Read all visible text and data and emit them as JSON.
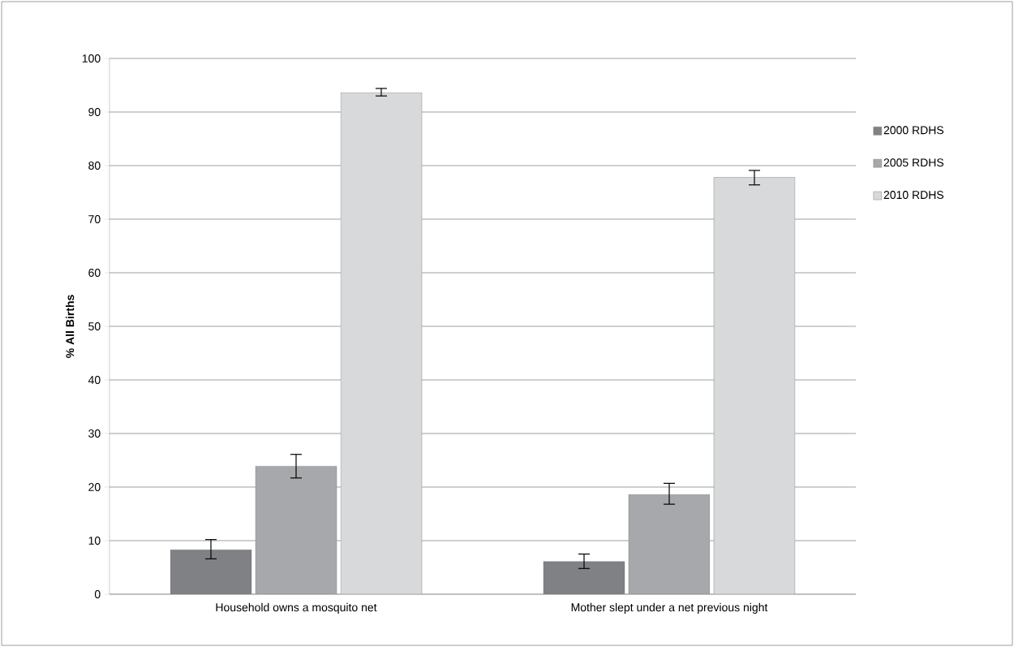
{
  "chart_data": {
    "type": "bar",
    "ylabel": "% All Births",
    "categories": [
      "Household owns a mosquito net",
      "Mother slept under a net previous night"
    ],
    "series": [
      {
        "name": "2000 RDHS",
        "color": "#808184",
        "values": [
          8.3,
          6.1
        ],
        "errors": [
          [
            6.6,
            10.2
          ],
          [
            4.8,
            7.5
          ]
        ]
      },
      {
        "name": "2005 RDHS",
        "color": "#a7a8ab",
        "values": [
          23.9,
          18.6
        ],
        "errors": [
          [
            21.7,
            26.1
          ],
          [
            16.8,
            20.7
          ]
        ]
      },
      {
        "name": "2010 RDHS",
        "color": "#d8d9db",
        "values": [
          93.6,
          77.8
        ],
        "errors": [
          [
            93.0,
            94.4
          ],
          [
            76.4,
            79.1
          ]
        ]
      }
    ],
    "ylim": [
      0,
      100
    ],
    "yticks": [
      0,
      10,
      20,
      30,
      40,
      50,
      60,
      70,
      80,
      90,
      100
    ],
    "grid": "y",
    "legend": "right"
  }
}
